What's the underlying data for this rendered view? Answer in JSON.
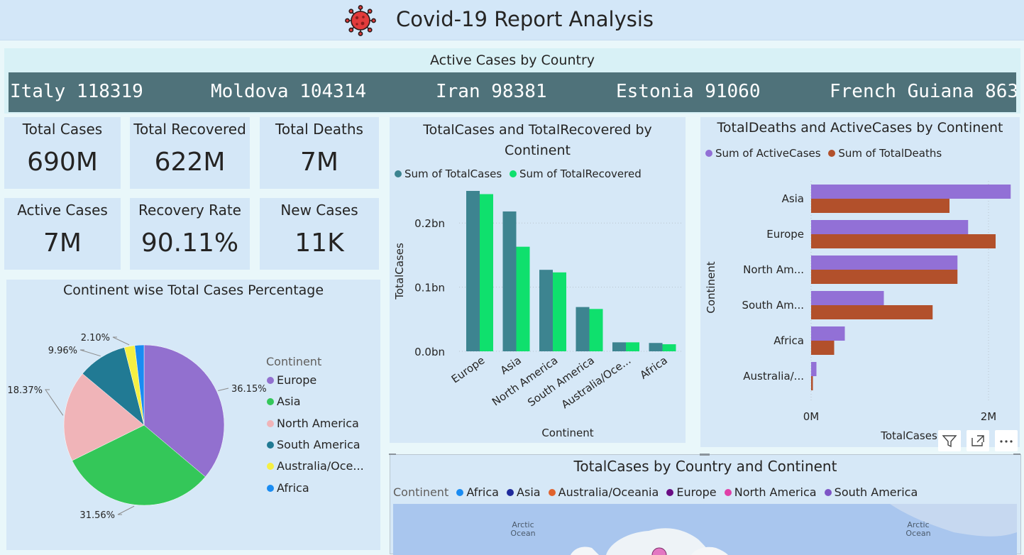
{
  "header": {
    "title": "Covid-19 Report Analysis",
    "icon": "virus-icon"
  },
  "ticker": {
    "title": "Active Cases by Country",
    "items": [
      "Italy 118319",
      "Moldova 104314",
      "Iran 98381",
      "Estonia 91060",
      "French Guiana 863"
    ]
  },
  "kpis": [
    {
      "label": "Total Cases",
      "value": "690M"
    },
    {
      "label": "Total Recovered",
      "value": "622M"
    },
    {
      "label": "Total Deaths",
      "value": "7M"
    },
    {
      "label": "Active Cases",
      "value": "7M"
    },
    {
      "label": "Recovery Rate",
      "value": "90.11%"
    },
    {
      "label": "New Cases",
      "value": "11K"
    }
  ],
  "pie": {
    "title": "Continent wise Total Cases Percentage",
    "legend_title": "Continent",
    "labels": [
      "36.15%",
      "31.56%",
      "18.37%",
      "9.96%",
      "2.10%"
    ]
  },
  "bar": {
    "title": "TotalCases and TotalRecovered by Continent",
    "legend": [
      "Sum of TotalCases",
      "Sum of TotalRecovered"
    ],
    "ylabel": "TotalCases",
    "xlabel": "Continent",
    "ticks": [
      "0.0bn",
      "0.1bn",
      "0.2bn"
    ],
    "categories": [
      "Europe",
      "Asia",
      "North America",
      "South America",
      "Australia/Oce...",
      "Africa"
    ]
  },
  "hbar": {
    "title": "TotalDeaths and ActiveCases by Continent",
    "legend": [
      "Sum of ActiveCases",
      "Sum of TotalDeaths"
    ],
    "ylabel": "Continent",
    "xlabel": "TotalCases",
    "ticks": [
      "0M",
      "2M"
    ],
    "categories": [
      "Asia",
      "Europe",
      "North Am...",
      "South Am...",
      "Africa",
      "Australia/..."
    ]
  },
  "map": {
    "title": "TotalCases by Country and Continent",
    "legend_title": "Continent",
    "legend": [
      "Africa",
      "Asia",
      "Australia/Oceania",
      "Europe",
      "North America",
      "South America"
    ],
    "ocean_label_1": "Arctic",
    "ocean_label_2": "Ocean"
  },
  "toolbar": {
    "icons": [
      "filter-icon",
      "focus-mode-icon",
      "more-options-icon"
    ]
  },
  "colors": {
    "europe": "#9270cf",
    "asia": "#34c759",
    "north_america": "#f0b4b8",
    "south_america": "#217a94",
    "australia": "#f6ef43",
    "africa": "#1a8cf2",
    "total_cases": "#3d8490",
    "total_recovered": "#0fe06d",
    "active_cases": "#9270d6",
    "total_deaths": "#b2502b"
  },
  "chart_data": [
    {
      "type": "pie",
      "title": "Continent wise Total Cases Percentage",
      "legend_title": "Continent",
      "categories": [
        "Europe",
        "Asia",
        "North America",
        "South America",
        "Australia/Oceania",
        "Africa"
      ],
      "values": [
        36.15,
        31.56,
        18.37,
        9.96,
        2.1,
        1.86
      ]
    },
    {
      "type": "bar",
      "title": "TotalCases and TotalRecovered by Continent",
      "categories": [
        "Europe",
        "Asia",
        "North America",
        "South America",
        "Australia/Oceania",
        "Africa"
      ],
      "series": [
        {
          "name": "Sum of TotalCases",
          "values": [
            0.25,
            0.218,
            0.127,
            0.069,
            0.014,
            0.013
          ]
        },
        {
          "name": "Sum of TotalRecovered",
          "values": [
            0.245,
            0.163,
            0.123,
            0.066,
            0.014,
            0.011
          ]
        }
      ],
      "xlabel": "Continent",
      "ylabel": "TotalCases",
      "unit": "bn",
      "ylim": [
        0,
        0.25
      ],
      "grid": true,
      "legend": "top-left"
    },
    {
      "type": "bar",
      "orientation": "horizontal",
      "title": "TotalDeaths and ActiveCases by Continent",
      "categories": [
        "Asia",
        "Europe",
        "North America",
        "South America",
        "Africa",
        "Australia/Oceania"
      ],
      "series": [
        {
          "name": "Sum of ActiveCases",
          "values": [
            2.25,
            1.77,
            1.65,
            0.82,
            0.38,
            0.06
          ]
        },
        {
          "name": "Sum of TotalDeaths",
          "values": [
            1.56,
            2.08,
            1.65,
            1.37,
            0.26,
            0.02
          ]
        }
      ],
      "xlabel": "TotalCases",
      "ylabel": "Continent",
      "unit": "M",
      "xlim": [
        0,
        2.4
      ],
      "grid": true,
      "legend": "top-left"
    }
  ]
}
